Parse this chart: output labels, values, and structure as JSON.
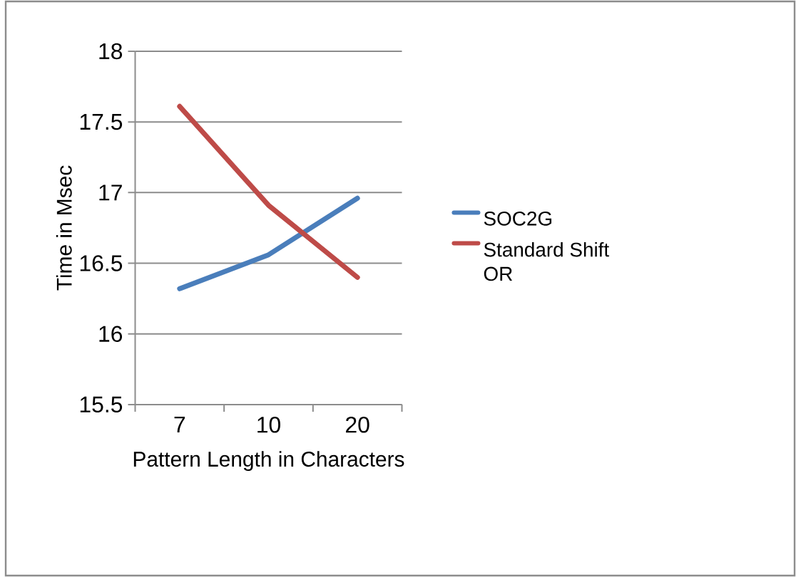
{
  "chart_data": {
    "type": "line",
    "xlabel": "Pattern Length in Characters",
    "ylabel": "Time in Msec",
    "categories": [
      "7",
      "10",
      "20"
    ],
    "series": [
      {
        "name": "SOC2G",
        "color": "#4a7ebb",
        "values": [
          16.32,
          16.56,
          16.96
        ]
      },
      {
        "name": "Standard Shift OR",
        "color": "#be4b48",
        "values": [
          17.61,
          16.91,
          16.4
        ]
      }
    ],
    "ylim": [
      15.5,
      18
    ],
    "yticks": [
      15.5,
      16,
      16.5,
      17,
      17.5,
      18
    ],
    "grid": "y",
    "legend": "right",
    "marker": "none",
    "line_style": "solid"
  }
}
